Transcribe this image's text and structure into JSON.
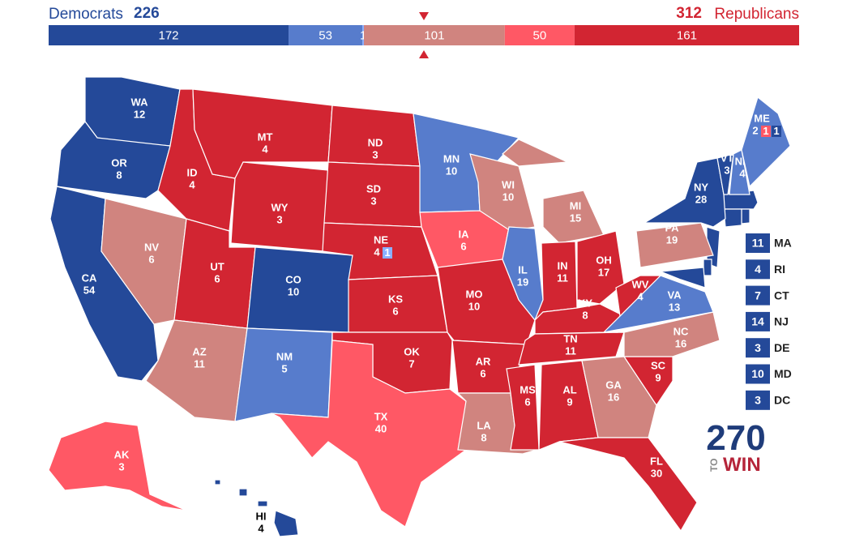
{
  "header": {
    "dem_label": "Democrats",
    "dem_total": 226,
    "rep_total": 312,
    "rep_label": "Republicans"
  },
  "bar": [
    {
      "value": 172,
      "color": "#244999"
    },
    {
      "value": 53,
      "color": "#577ccc"
    },
    {
      "value": 1,
      "color": "#8aafff"
    },
    {
      "value": 101,
      "color": "#d0847f"
    },
    {
      "value": 50,
      "color": "#ff5865"
    },
    {
      "value": 161,
      "color": "#d22532"
    }
  ],
  "states": [
    {
      "abbr": "WA",
      "votes": 12,
      "color": "#244999"
    },
    {
      "abbr": "OR",
      "votes": 8,
      "color": "#244999"
    },
    {
      "abbr": "CA",
      "votes": 54,
      "color": "#244999"
    },
    {
      "abbr": "NV",
      "votes": 6,
      "color": "#d0847f"
    },
    {
      "abbr": "ID",
      "votes": 4,
      "color": "#d22532"
    },
    {
      "abbr": "MT",
      "votes": 4,
      "color": "#d22532"
    },
    {
      "abbr": "WY",
      "votes": 3,
      "color": "#d22532"
    },
    {
      "abbr": "UT",
      "votes": 6,
      "color": "#d22532"
    },
    {
      "abbr": "CO",
      "votes": 10,
      "color": "#244999"
    },
    {
      "abbr": "AZ",
      "votes": 11,
      "color": "#d0847f"
    },
    {
      "abbr": "NM",
      "votes": 5,
      "color": "#577ccc"
    },
    {
      "abbr": "ND",
      "votes": 3,
      "color": "#d22532"
    },
    {
      "abbr": "SD",
      "votes": 3,
      "color": "#d22532"
    },
    {
      "abbr": "NE",
      "votes": 4,
      "color": "#d22532",
      "districts": [
        {
          "votes": 1,
          "color": "#8aafff"
        }
      ]
    },
    {
      "abbr": "KS",
      "votes": 6,
      "color": "#d22532"
    },
    {
      "abbr": "OK",
      "votes": 7,
      "color": "#d22532"
    },
    {
      "abbr": "TX",
      "votes": 40,
      "color": "#ff5865"
    },
    {
      "abbr": "MN",
      "votes": 10,
      "color": "#577ccc"
    },
    {
      "abbr": "IA",
      "votes": 6,
      "color": "#ff5865"
    },
    {
      "abbr": "MO",
      "votes": 10,
      "color": "#d22532"
    },
    {
      "abbr": "AR",
      "votes": 6,
      "color": "#d22532"
    },
    {
      "abbr": "LA",
      "votes": 8,
      "color": "#d0847f"
    },
    {
      "abbr": "WI",
      "votes": 10,
      "color": "#d0847f"
    },
    {
      "abbr": "IL",
      "votes": 19,
      "color": "#577ccc"
    },
    {
      "abbr": "MI",
      "votes": 15,
      "color": "#d0847f"
    },
    {
      "abbr": "IN",
      "votes": 11,
      "color": "#d22532"
    },
    {
      "abbr": "OH",
      "votes": 17,
      "color": "#d22532"
    },
    {
      "abbr": "KY",
      "votes": 8,
      "color": "#d22532"
    },
    {
      "abbr": "TN",
      "votes": 11,
      "color": "#d22532"
    },
    {
      "abbr": "MS",
      "votes": 6,
      "color": "#d22532"
    },
    {
      "abbr": "AL",
      "votes": 9,
      "color": "#d22532"
    },
    {
      "abbr": "GA",
      "votes": 16,
      "color": "#d0847f"
    },
    {
      "abbr": "FL",
      "votes": 30,
      "color": "#d22532"
    },
    {
      "abbr": "SC",
      "votes": 9,
      "color": "#d22532"
    },
    {
      "abbr": "NC",
      "votes": 16,
      "color": "#d0847f"
    },
    {
      "abbr": "VA",
      "votes": 13,
      "color": "#577ccc"
    },
    {
      "abbr": "WV",
      "votes": 4,
      "color": "#d22532"
    },
    {
      "abbr": "PA",
      "votes": 19,
      "color": "#d0847f"
    },
    {
      "abbr": "NY",
      "votes": 28,
      "color": "#244999"
    },
    {
      "abbr": "VT",
      "votes": 3,
      "color": "#244999"
    },
    {
      "abbr": "NH",
      "votes": 4,
      "color": "#577ccc"
    },
    {
      "abbr": "ME",
      "votes": 2,
      "color": "#577ccc",
      "districts": [
        {
          "votes": 1,
          "color": "#ff5865"
        },
        {
          "votes": 1,
          "color": "#244999"
        }
      ]
    },
    {
      "abbr": "AK",
      "votes": 3,
      "color": "#ff5865"
    },
    {
      "abbr": "HI",
      "votes": 4,
      "color": "#244999"
    }
  ],
  "small_states": [
    {
      "abbr": "MA",
      "votes": 11,
      "color": "#244999"
    },
    {
      "abbr": "RI",
      "votes": 4,
      "color": "#244999"
    },
    {
      "abbr": "CT",
      "votes": 7,
      "color": "#244999"
    },
    {
      "abbr": "NJ",
      "votes": 14,
      "color": "#244999"
    },
    {
      "abbr": "DE",
      "votes": 3,
      "color": "#244999"
    },
    {
      "abbr": "MD",
      "votes": 10,
      "color": "#244999"
    },
    {
      "abbr": "DC",
      "votes": 3,
      "color": "#244999"
    }
  ],
  "logo": {
    "number": "270",
    "to": "TO",
    "win": "WIN"
  }
}
